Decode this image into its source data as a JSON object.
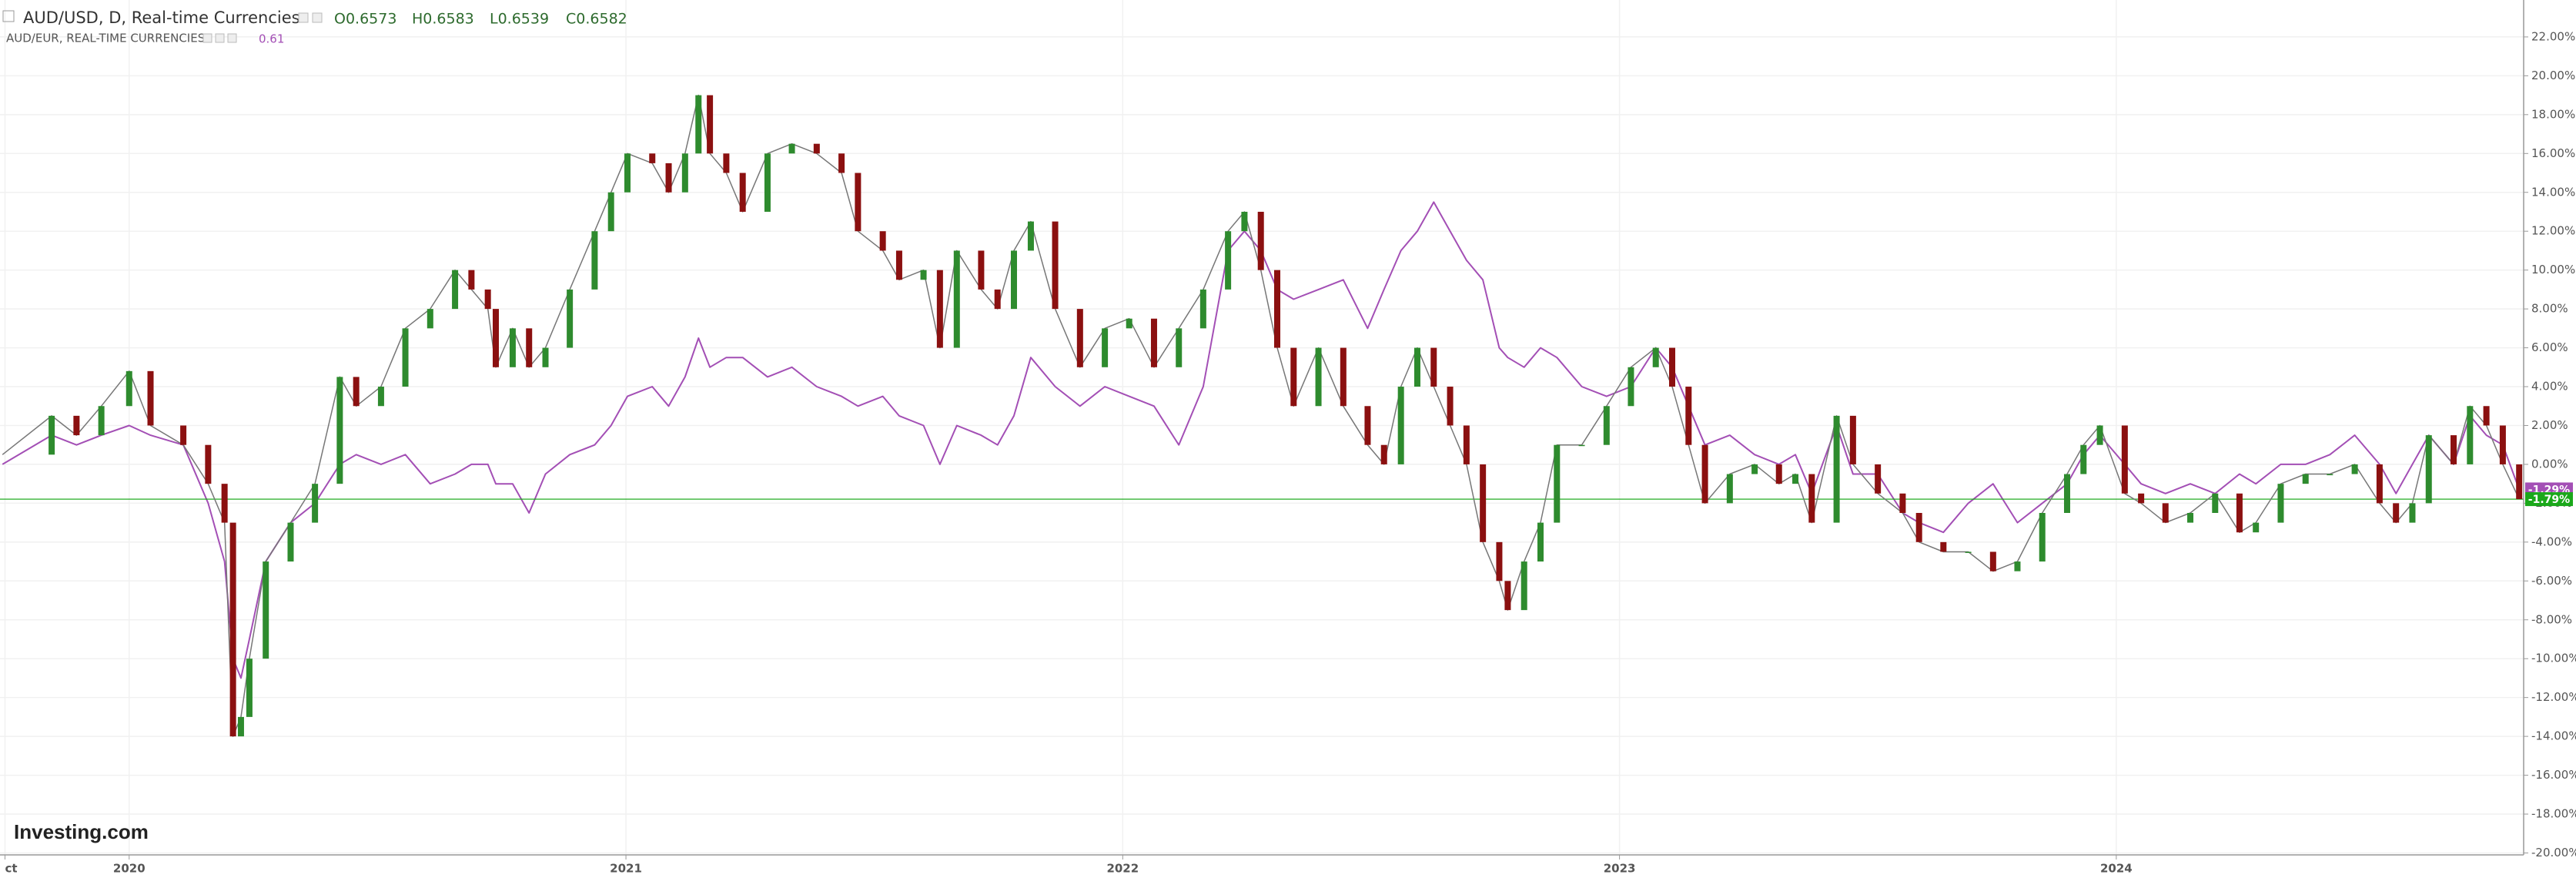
{
  "header": {
    "symbol": "AUD/USD, D, Real-time Currencies",
    "ohlc": [
      "O0.6573",
      "H0.6583",
      "L0.6539",
      "C0.6582"
    ],
    "compare_symbol": "AUD/EUR, REAL-TIME CURRENCIES",
    "compare_value": "0.61",
    "logo": "Investing.com"
  },
  "chart_data": {
    "type": "candlestick",
    "x": [
      2019.745,
      2019.844,
      2019.894,
      2019.944,
      2020.0,
      2020.043,
      2020.109,
      2020.159,
      2020.192,
      2020.209,
      2020.225,
      2020.242,
      2020.275,
      2020.325,
      2020.374,
      2020.424,
      2020.457,
      2020.507,
      2020.556,
      2020.606,
      2020.656,
      2020.689,
      2020.722,
      2020.738,
      2020.772,
      2020.805,
      2020.838,
      2020.887,
      2020.937,
      2020.97,
      2021.003,
      2021.053,
      2021.086,
      2021.119,
      2021.146,
      2021.169,
      2021.202,
      2021.235,
      2021.285,
      2021.334,
      2021.384,
      2021.434,
      2021.467,
      2021.517,
      2021.55,
      2021.599,
      2021.632,
      2021.666,
      2021.715,
      2021.748,
      2021.781,
      2021.815,
      2021.864,
      2021.914,
      2021.964,
      2022.013,
      2022.063,
      2022.113,
      2022.162,
      2022.212,
      2022.245,
      2022.278,
      2022.311,
      2022.344,
      2022.394,
      2022.444,
      2022.493,
      2022.526,
      2022.56,
      2022.593,
      2022.626,
      2022.659,
      2022.692,
      2022.725,
      2022.758,
      2022.775,
      2022.808,
      2022.841,
      2022.874,
      2022.924,
      2022.974,
      2023.023,
      2023.073,
      2023.106,
      2023.139,
      2023.172,
      2023.222,
      2023.272,
      2023.321,
      2023.354,
      2023.387,
      2023.437,
      2023.47,
      2023.52,
      2023.57,
      2023.603,
      2023.652,
      2023.702,
      2023.752,
      2023.801,
      2023.851,
      2023.901,
      2023.934,
      2023.967,
      2024.017,
      2024.05,
      2024.099,
      2024.149,
      2024.199,
      2024.248,
      2024.281,
      2024.331,
      2024.381,
      2024.43,
      2024.48,
      2024.53,
      2024.563,
      2024.596,
      2024.629,
      2024.679,
      2024.712,
      2024.745,
      2024.778,
      2024.811
    ],
    "series": [
      {
        "name": "AUD/USD",
        "type": "candlestick",
        "up_color": "#2e8b2e",
        "down_color": "#8b1010",
        "color": "#1aa81a",
        "last_label": "-1.79%",
        "values": [
          0.5,
          2.5,
          1.5,
          3,
          4.8,
          2,
          1,
          -1,
          -3,
          -14,
          -13,
          -10,
          -5,
          -3,
          -1,
          4.5,
          3,
          4,
          7,
          8,
          10,
          9,
          8,
          5,
          7,
          5,
          6,
          9,
          12,
          14,
          16,
          15.5,
          14,
          16,
          19,
          16,
          15,
          13,
          16,
          16.5,
          16,
          15,
          12,
          11,
          9.5,
          10,
          6,
          11,
          9,
          8,
          11,
          12.5,
          8,
          5,
          7,
          7.5,
          5,
          7,
          9,
          12,
          13,
          10,
          6,
          3,
          6,
          3,
          1,
          0,
          4,
          6,
          4,
          2,
          0,
          -4,
          -6,
          -7.5,
          -5,
          -3,
          1,
          1,
          3,
          5,
          6,
          4,
          1,
          -2,
          -0.5,
          0,
          -1,
          -0.5,
          -3,
          2.5,
          0,
          -1.5,
          -2.5,
          -4,
          -4.5,
          -4.5,
          -5.5,
          -5,
          -2.5,
          -0.5,
          1,
          2,
          -1.5,
          -2,
          -3,
          -2.5,
          -1.5,
          -3.5,
          -3,
          -1,
          -0.5,
          -0.5,
          0,
          -2,
          -3,
          -2,
          1.5,
          0,
          3,
          2,
          0,
          -1.79
        ]
      },
      {
        "name": "AUD/EUR",
        "type": "line",
        "color": "#a34fb5",
        "last_label": "-1.29%",
        "values": [
          0,
          1.5,
          1,
          1.5,
          2,
          1.5,
          1,
          -2,
          -5,
          -10,
          -11,
          -9,
          -5,
          -3,
          -2,
          0,
          0.5,
          0,
          0.5,
          -1,
          -0.5,
          0,
          0,
          -1,
          -1,
          -2.5,
          -0.5,
          0.5,
          1,
          2,
          3.5,
          4,
          3,
          4.5,
          6.5,
          5,
          5.5,
          5.5,
          4.5,
          5,
          4,
          3.5,
          3,
          3.5,
          2.5,
          2,
          0,
          2,
          1.5,
          1,
          2.5,
          5.5,
          4,
          3,
          4,
          3.5,
          3,
          1,
          4,
          11,
          12,
          11,
          9,
          8.5,
          9,
          9.5,
          7,
          9,
          11,
          12,
          13.5,
          12,
          10.5,
          9.5,
          6,
          5.5,
          5,
          6,
          5.5,
          4,
          3.5,
          4,
          6,
          5,
          3,
          1,
          1.5,
          0.5,
          0,
          0.5,
          -1.5,
          2,
          -0.5,
          -0.5,
          -2.5,
          -3,
          -3.5,
          -2,
          -1,
          -3,
          -2,
          -1,
          0.5,
          1.5,
          0,
          -1,
          -1.5,
          -1,
          -1.5,
          -0.5,
          -1,
          0,
          0,
          0.5,
          1.5,
          0,
          -1.5,
          0,
          1.5,
          0,
          2.5,
          1.5,
          1,
          -1.29
        ]
      }
    ],
    "xlim": [
      2019.74,
      2024.82
    ],
    "xticks": [
      {
        "value": 2019.75,
        "label": "ct"
      },
      2020,
      2021,
      2022,
      2023,
      2024
    ],
    "ylim": [
      -20.1,
      23.9
    ],
    "yticks": [
      {
        "value": 22,
        "label": "22.00%"
      },
      {
        "value": 20,
        "label": "20.00%"
      },
      {
        "value": 18,
        "label": "18.00%"
      },
      {
        "value": 16,
        "label": "16.00%"
      },
      {
        "value": 14,
        "label": "14.00%"
      },
      {
        "value": 12,
        "label": "12.00%"
      },
      {
        "value": 10,
        "label": "10.00%"
      },
      {
        "value": 8,
        "label": "8.00%"
      },
      {
        "value": 6,
        "label": "6.00%"
      },
      {
        "value": 4,
        "label": "4.00%"
      },
      {
        "value": 2,
        "label": "2.00%"
      },
      {
        "value": 0,
        "label": "0.00%"
      },
      {
        "value": -2,
        "label": "-2.00%"
      },
      {
        "value": -4,
        "label": "-4.00%"
      },
      {
        "value": -6,
        "label": "-6.00%"
      },
      {
        "value": -8,
        "label": "-8.00%"
      },
      {
        "value": -10,
        "label": "-10.00%"
      },
      {
        "value": -12,
        "label": "-12.00%"
      },
      {
        "value": -14,
        "label": "-14.00%"
      },
      {
        "value": -16,
        "label": "-16.00%"
      },
      {
        "value": -18,
        "label": "-18.00%"
      },
      {
        "value": -20,
        "label": "-20.00%"
      }
    ],
    "grid": true
  }
}
